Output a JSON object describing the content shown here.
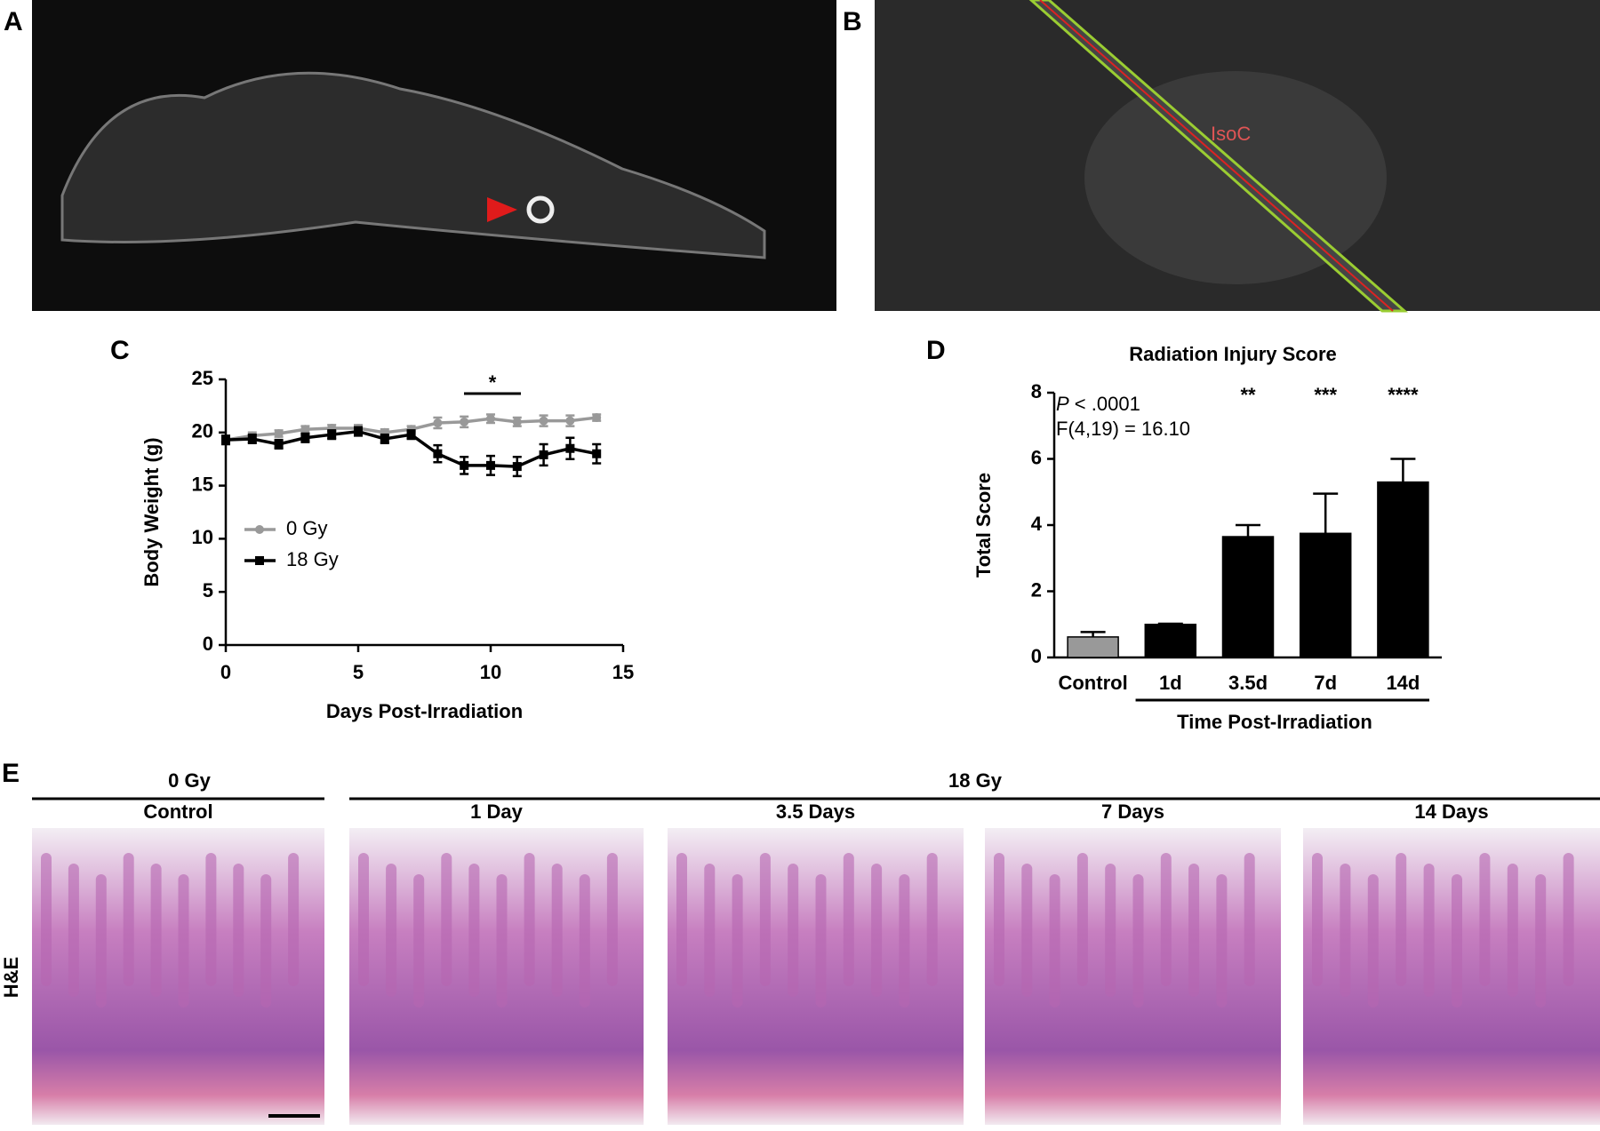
{
  "panel_labels": {
    "a": "A",
    "b": "B",
    "c": "C",
    "d": "D",
    "e": "E"
  },
  "panel_b_annotation": "IsoC",
  "chart_data": [
    {
      "type": "line",
      "x_label": "Days Post-Irradiation",
      "y_label": "Body Weight (g)",
      "x": [
        0,
        1,
        2,
        3,
        4,
        5,
        6,
        7,
        8,
        9,
        10,
        11,
        12,
        13,
        14
      ],
      "series": [
        {
          "name": "0 Gy",
          "color": "#999999",
          "values": [
            19.3,
            19.7,
            19.9,
            20.3,
            20.4,
            20.4,
            20.0,
            20.3,
            20.9,
            21.0,
            21.3,
            21.0,
            21.1,
            21.1,
            21.4
          ],
          "errors": [
            0.3,
            0.3,
            0.3,
            0.3,
            0.3,
            0.3,
            0.3,
            0.3,
            0.5,
            0.5,
            0.4,
            0.4,
            0.5,
            0.5,
            0.3
          ]
        },
        {
          "name": "18 Gy",
          "color": "#000000",
          "values": [
            19.3,
            19.4,
            18.9,
            19.5,
            19.8,
            20.1,
            19.4,
            19.8,
            18.0,
            16.9,
            16.9,
            16.8,
            17.9,
            18.5,
            18.0
          ],
          "errors": [
            0.4,
            0.4,
            0.4,
            0.4,
            0.4,
            0.4,
            0.4,
            0.4,
            0.8,
            0.8,
            0.9,
            0.9,
            1.0,
            1.0,
            0.9
          ]
        }
      ],
      "xlim": [
        0,
        15
      ],
      "xticks": [
        0,
        5,
        10,
        15
      ],
      "ylim": [
        0,
        25
      ],
      "yticks": [
        0,
        5,
        10,
        15,
        20,
        25
      ],
      "annotation": "*",
      "legend": "left"
    },
    {
      "type": "bar",
      "title": "Radiation Injury Score",
      "y_label": "Total Score",
      "x_label": "Time Post-Irradiation",
      "categories": [
        "Control",
        "1d",
        "3.5d",
        "7d",
        "14d"
      ],
      "values": [
        0.62,
        1.0,
        3.65,
        3.75,
        5.3
      ],
      "errors": [
        0.15,
        0.02,
        0.35,
        1.2,
        0.7
      ],
      "colors": [
        "#999999",
        "#000000",
        "#000000",
        "#000000",
        "#000000"
      ],
      "significance": [
        null,
        null,
        "**",
        "***",
        "****"
      ],
      "stat_p_symbol": "P",
      "stat_p": " < .0001",
      "stat_f": "F(4,19) = 16.10",
      "ylim": [
        0,
        8
      ],
      "yticks": [
        0,
        2,
        4,
        6,
        8
      ]
    }
  ],
  "histology": {
    "group_0": "0 Gy",
    "group_18": "18 Gy",
    "stain": "H&E",
    "panels": [
      "Control",
      "1 Day",
      "3.5 Days",
      "7 Days",
      "14 Days"
    ]
  }
}
